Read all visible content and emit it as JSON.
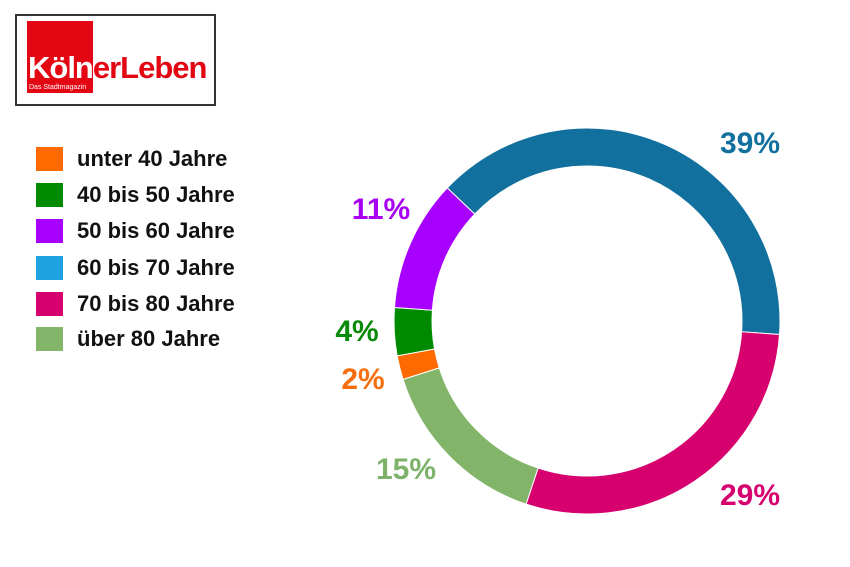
{
  "logo": {
    "brand_left": "Köln",
    "brand_right": "erLeben",
    "tagline": "Das Stadtmagazin"
  },
  "chart_data": {
    "type": "pie",
    "subtype": "donut",
    "title": "",
    "legend_position": "left",
    "categories": [
      "60 bis 70 Jahre",
      "70 bis 80 Jahre",
      "über 80 Jahre",
      "unter 40 Jahre",
      "40 bis 50 Jahre",
      "50 bis 60 Jahre"
    ],
    "values": [
      39,
      29,
      15,
      2,
      4,
      11
    ],
    "labels": [
      "39%",
      "29%",
      "15%",
      "2%",
      "4%",
      "11%"
    ],
    "colors": [
      "#12709e",
      "#d6006f",
      "#82b46a",
      "#ff6a00",
      "#008a00",
      "#a800ff"
    ],
    "label_colors": [
      "#12709e",
      "#d6006f",
      "#7db26a",
      "#f56e0f",
      "#0a8a0a",
      "#a800f0"
    ]
  },
  "legend": [
    {
      "label": "unter 40 Jahre",
      "color": "#ff6a00"
    },
    {
      "label": "40 bis 50 Jahre",
      "color": "#008a00"
    },
    {
      "label": "50 bis 60 Jahre",
      "color": "#a800ff"
    },
    {
      "label": "60 bis 70 Jahre",
      "color": "#1ea2e0"
    },
    {
      "label": "70 bis 80 Jahre",
      "color": "#d6006f"
    },
    {
      "label": "über 80 Jahre",
      "color": "#82b46a"
    }
  ]
}
